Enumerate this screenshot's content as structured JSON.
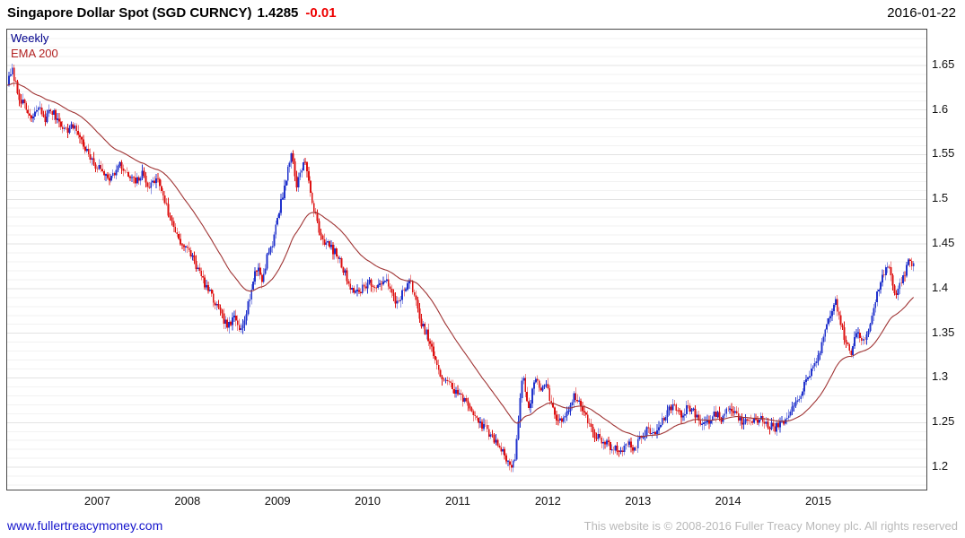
{
  "header": {
    "title": "Singapore Dollar Spot (SGD CURNCY)",
    "last_price": "1.4285",
    "change": "-0.01",
    "date": "2016-01-22"
  },
  "legend": {
    "frequency": "Weekly",
    "overlay": "EMA 200"
  },
  "footer": {
    "link": "www.fullertreacymoney.com",
    "copyright": "This website is © 2008-2016 Fuller Treacy Money plc. All rights reserved"
  },
  "colors": {
    "up": "#2233cc",
    "down": "#dd1111",
    "ema": "#a03535",
    "grid_minor": "#f2f2f2",
    "grid_major": "#e3e3e3",
    "change_text": "#ee0000",
    "frequency_label": "#00008b",
    "overlay_label": "#b22222",
    "link": "#1414cc",
    "copyright_text": "#b9b9b9"
  },
  "chart_data": {
    "type": "candlestick",
    "title": "Singapore Dollar Spot (SGD CURNCY)",
    "frequency": "Weekly",
    "overlay": "EMA 200",
    "last_price": 1.4285,
    "change": -0.01,
    "date": "2016-01-22",
    "ema_period": 40,
    "x_start": 2006.0,
    "x_end": 2016.2,
    "ylim": [
      1.175,
      1.69
    ],
    "grid_minor_step": 0.01,
    "grid_major_step": 0.05,
    "legend_position": "top-left",
    "y_ticks": [
      "1.65",
      "1.6",
      "1.55",
      "1.5",
      "1.45",
      "1.4",
      "1.35",
      "1.3",
      "1.25",
      "1.2"
    ],
    "x_ticks": [
      2007,
      2008,
      2009,
      2010,
      2011,
      2012,
      2013,
      2014,
      2015
    ],
    "anchors": [
      [
        2006.0,
        1.63
      ],
      [
        2006.06,
        1.644
      ],
      [
        2006.12,
        1.618
      ],
      [
        2006.2,
        1.602
      ],
      [
        2006.28,
        1.588
      ],
      [
        2006.34,
        1.604
      ],
      [
        2006.42,
        1.59
      ],
      [
        2006.48,
        1.6
      ],
      [
        2006.56,
        1.59
      ],
      [
        2006.65,
        1.577
      ],
      [
        2006.75,
        1.582
      ],
      [
        2006.85,
        1.56
      ],
      [
        2006.95,
        1.54
      ],
      [
        2007.05,
        1.532
      ],
      [
        2007.15,
        1.524
      ],
      [
        2007.25,
        1.538
      ],
      [
        2007.33,
        1.527
      ],
      [
        2007.42,
        1.519
      ],
      [
        2007.5,
        1.528
      ],
      [
        2007.58,
        1.514
      ],
      [
        2007.66,
        1.524
      ],
      [
        2007.73,
        1.506
      ],
      [
        2007.8,
        1.48
      ],
      [
        2007.88,
        1.462
      ],
      [
        2007.95,
        1.448
      ],
      [
        2008.05,
        1.437
      ],
      [
        2008.12,
        1.42
      ],
      [
        2008.2,
        1.404
      ],
      [
        2008.3,
        1.385
      ],
      [
        2008.38,
        1.369
      ],
      [
        2008.45,
        1.357
      ],
      [
        2008.52,
        1.367
      ],
      [
        2008.58,
        1.354
      ],
      [
        2008.65,
        1.373
      ],
      [
        2008.72,
        1.404
      ],
      [
        2008.78,
        1.426
      ],
      [
        2008.83,
        1.407
      ],
      [
        2008.89,
        1.44
      ],
      [
        2008.95,
        1.452
      ],
      [
        2009.0,
        1.48
      ],
      [
        2009.06,
        1.506
      ],
      [
        2009.11,
        1.531
      ],
      [
        2009.16,
        1.553
      ],
      [
        2009.21,
        1.514
      ],
      [
        2009.26,
        1.536
      ],
      [
        2009.31,
        1.541
      ],
      [
        2009.37,
        1.504
      ],
      [
        2009.43,
        1.477
      ],
      [
        2009.5,
        1.455
      ],
      [
        2009.58,
        1.447
      ],
      [
        2009.65,
        1.439
      ],
      [
        2009.72,
        1.424
      ],
      [
        2009.8,
        1.404
      ],
      [
        2009.88,
        1.394
      ],
      [
        2009.95,
        1.402
      ],
      [
        2010.02,
        1.408
      ],
      [
        2010.1,
        1.397
      ],
      [
        2010.18,
        1.414
      ],
      [
        2010.25,
        1.397
      ],
      [
        2010.32,
        1.384
      ],
      [
        2010.4,
        1.397
      ],
      [
        2010.48,
        1.408
      ],
      [
        2010.53,
        1.389
      ],
      [
        2010.58,
        1.362
      ],
      [
        2010.65,
        1.351
      ],
      [
        2010.72,
        1.329
      ],
      [
        2010.8,
        1.302
      ],
      [
        2010.88,
        1.298
      ],
      [
        2010.95,
        1.287
      ],
      [
        2011.02,
        1.281
      ],
      [
        2011.1,
        1.271
      ],
      [
        2011.18,
        1.261
      ],
      [
        2011.25,
        1.249
      ],
      [
        2011.32,
        1.242
      ],
      [
        2011.4,
        1.231
      ],
      [
        2011.48,
        1.221
      ],
      [
        2011.55,
        1.209
      ],
      [
        2011.6,
        1.199
      ],
      [
        2011.64,
        1.212
      ],
      [
        2011.68,
        1.264
      ],
      [
        2011.72,
        1.306
      ],
      [
        2011.76,
        1.281
      ],
      [
        2011.8,
        1.261
      ],
      [
        2011.84,
        1.296
      ],
      [
        2011.88,
        1.302
      ],
      [
        2011.92,
        1.284
      ],
      [
        2011.98,
        1.291
      ],
      [
        2012.05,
        1.267
      ],
      [
        2012.12,
        1.249
      ],
      [
        2012.18,
        1.257
      ],
      [
        2012.25,
        1.271
      ],
      [
        2012.3,
        1.281
      ],
      [
        2012.36,
        1.269
      ],
      [
        2012.42,
        1.257
      ],
      [
        2012.5,
        1.239
      ],
      [
        2012.58,
        1.231
      ],
      [
        2012.65,
        1.227
      ],
      [
        2012.72,
        1.221
      ],
      [
        2012.8,
        1.219
      ],
      [
        2012.88,
        1.226
      ],
      [
        2012.95,
        1.221
      ],
      [
        2013.02,
        1.231
      ],
      [
        2013.1,
        1.241
      ],
      [
        2013.18,
        1.237
      ],
      [
        2013.25,
        1.247
      ],
      [
        2013.32,
        1.261
      ],
      [
        2013.4,
        1.271
      ],
      [
        2013.48,
        1.257
      ],
      [
        2013.55,
        1.269
      ],
      [
        2013.62,
        1.261
      ],
      [
        2013.7,
        1.249
      ],
      [
        2013.78,
        1.251
      ],
      [
        2013.85,
        1.261
      ],
      [
        2013.92,
        1.254
      ],
      [
        2014.0,
        1.267
      ],
      [
        2014.08,
        1.261
      ],
      [
        2014.15,
        1.251
      ],
      [
        2014.22,
        1.257
      ],
      [
        2014.3,
        1.251
      ],
      [
        2014.38,
        1.254
      ],
      [
        2014.45,
        1.247
      ],
      [
        2014.52,
        1.244
      ],
      [
        2014.6,
        1.249
      ],
      [
        2014.68,
        1.257
      ],
      [
        2014.75,
        1.271
      ],
      [
        2014.82,
        1.287
      ],
      [
        2014.9,
        1.301
      ],
      [
        2014.96,
        1.317
      ],
      [
        2015.02,
        1.331
      ],
      [
        2015.08,
        1.351
      ],
      [
        2015.14,
        1.371
      ],
      [
        2015.19,
        1.387
      ],
      [
        2015.25,
        1.361
      ],
      [
        2015.31,
        1.337
      ],
      [
        2015.37,
        1.329
      ],
      [
        2015.43,
        1.351
      ],
      [
        2015.49,
        1.341
      ],
      [
        2015.55,
        1.351
      ],
      [
        2015.6,
        1.374
      ],
      [
        2015.66,
        1.397
      ],
      [
        2015.72,
        1.417
      ],
      [
        2015.77,
        1.428
      ],
      [
        2015.82,
        1.407
      ],
      [
        2015.86,
        1.391
      ],
      [
        2015.9,
        1.401
      ],
      [
        2015.95,
        1.414
      ],
      [
        2016.0,
        1.431
      ],
      [
        2016.04,
        1.427
      ],
      [
        2016.06,
        1.4285
      ]
    ]
  }
}
